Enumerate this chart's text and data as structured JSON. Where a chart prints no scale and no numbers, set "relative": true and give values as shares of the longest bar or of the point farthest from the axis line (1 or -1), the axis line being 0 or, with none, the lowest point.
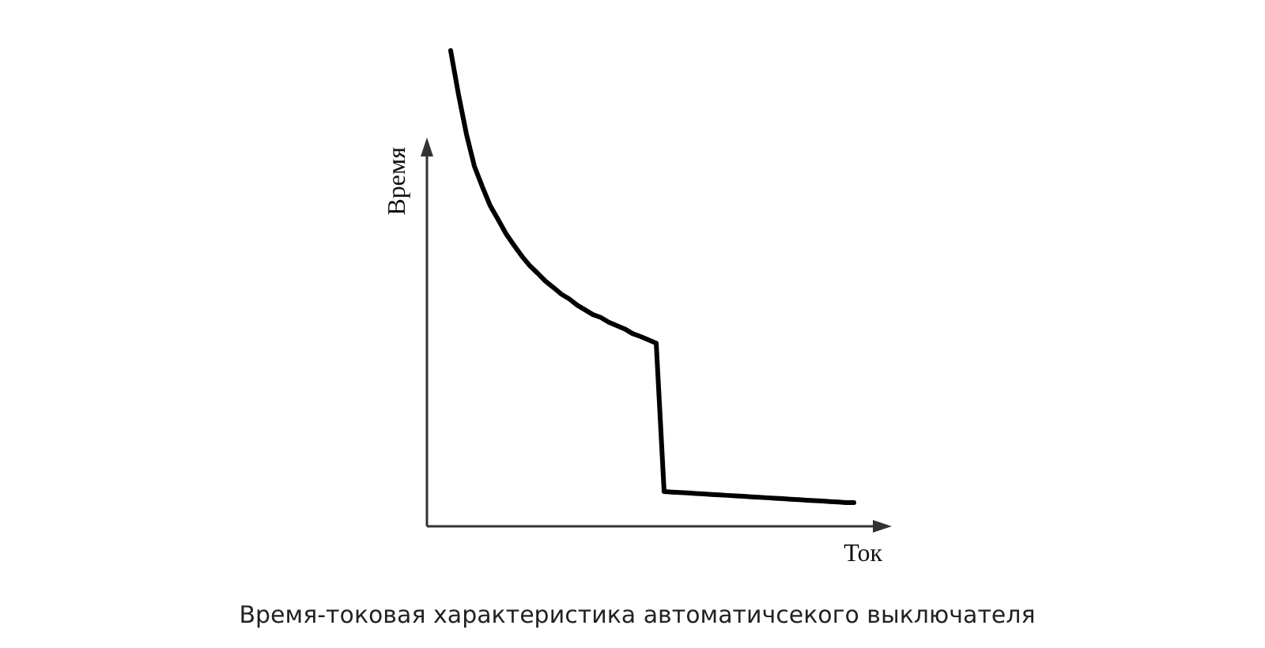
{
  "chart_data": {
    "type": "line",
    "title": "Время-токовая характеристика автоматичсекого выключателя",
    "xlabel": "Ток",
    "ylabel": "Время",
    "relative": true,
    "line_style": "solid",
    "categories": [
      null,
      null,
      null,
      null,
      null,
      null,
      null,
      null,
      null,
      null,
      null,
      null,
      null,
      null,
      null,
      null,
      null,
      null,
      null,
      null,
      null,
      null,
      null,
      null,
      null,
      null,
      null,
      null,
      null,
      null,
      null,
      null,
      null,
      null,
      null,
      null,
      null,
      null,
      null,
      null,
      null,
      null,
      null,
      null,
      null,
      null,
      null,
      null,
      null,
      null,
      null,
      null
    ],
    "series": [
      {
        "color": "#000000",
        "values": [
          1.0,
          0.907,
          0.824,
          0.757,
          0.714,
          0.674,
          0.645,
          0.615,
          0.591,
          0.568,
          0.548,
          0.532,
          0.515,
          0.502,
          0.488,
          0.478,
          0.465,
          0.455,
          0.445,
          0.439,
          0.429,
          0.422,
          0.415,
          0.405,
          0.399,
          0.392,
          0.385,
          0.073,
          0.072,
          0.071,
          0.07,
          0.069,
          0.068,
          0.067,
          0.066,
          0.065,
          0.064,
          0.063,
          0.062,
          0.061,
          0.06,
          0.059,
          0.058,
          0.057,
          0.056,
          0.055,
          0.054,
          0.053,
          0.052,
          0.051,
          0.05,
          0.05
        ]
      }
    ]
  }
}
